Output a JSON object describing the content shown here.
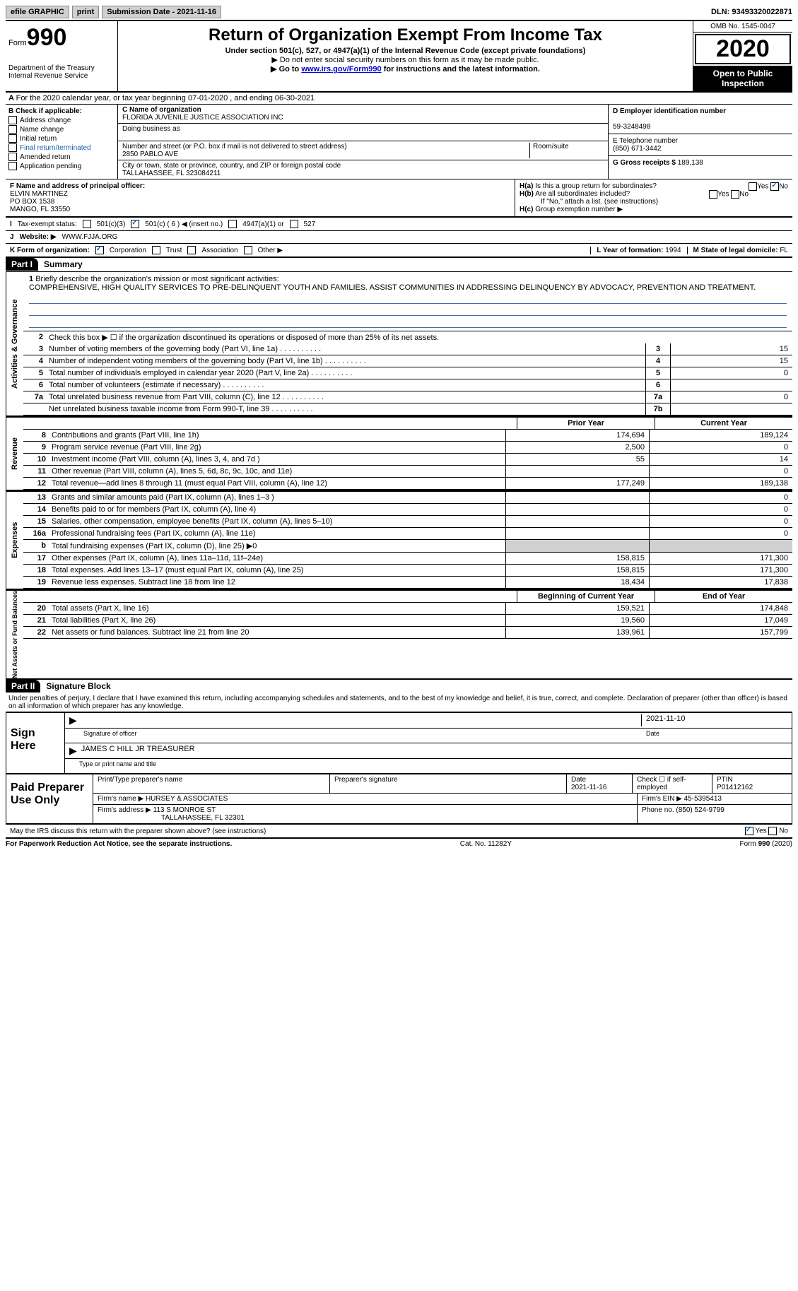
{
  "topbar": {
    "efile": "efile GRAPHIC",
    "print": "print",
    "sub_label": "Submission Date - ",
    "sub_date": "2021-11-16",
    "dln_label": "DLN: ",
    "dln": "93493320022871"
  },
  "header": {
    "form_prefix": "Form",
    "form_num": "990",
    "dept1": "Department of the Treasury",
    "dept2": "Internal Revenue Service",
    "title": "Return of Organization Exempt From Income Tax",
    "subtitle": "Under section 501(c), 527, or 4947(a)(1) of the Internal Revenue Code (except private foundations)",
    "note1": "▶ Do not enter social security numbers on this form as it may be made public.",
    "note2_pre": "▶ Go to ",
    "note2_link": "www.irs.gov/Form990",
    "note2_post": " for instructions and the latest information.",
    "omb": "OMB No. 1545-0047",
    "year": "2020",
    "public1": "Open to Public",
    "public2": "Inspection"
  },
  "line_a": "For the 2020 calendar year, or tax year beginning 07-01-2020    , and ending 06-30-2021",
  "section_b": {
    "label": "B Check if applicable:",
    "items": [
      "Address change",
      "Name change",
      "Initial return",
      "Final return/terminated",
      "Amended return",
      "Application pending"
    ]
  },
  "section_c": {
    "name_lbl": "C Name of organization",
    "name": "FLORIDA JUVENILE JUSTICE ASSOCIATION INC",
    "dba_lbl": "Doing business as",
    "addr_lbl": "Number and street (or P.O. box if mail is not delivered to street address)",
    "room_lbl": "Room/suite",
    "addr": "2850 PABLO AVE",
    "city_lbl": "City or town, state or province, country, and ZIP or foreign postal code",
    "city": "TALLAHASSEE, FL  323084211"
  },
  "section_d": {
    "ein_lbl": "D Employer identification number",
    "ein": "59-3248498",
    "phone_lbl": "E Telephone number",
    "phone": "(850) 671-3442",
    "gross_lbl": "G Gross receipts $ ",
    "gross": "189,138"
  },
  "section_f": {
    "lbl": "F Name and address of principal officer:",
    "name": "ELVIN MARTINEZ",
    "addr1": "PO BOX 1538",
    "addr2": "MANGO, FL  33550"
  },
  "section_h": {
    "ha": "Is this a group return for subordinates?",
    "hb": "Are all subordinates included?",
    "hb_note": "If \"No,\" attach a list. (see instructions)",
    "hc": "Group exemption number ▶",
    "yes": "Yes",
    "no": "No"
  },
  "row_i": {
    "lbl": "Tax-exempt status:",
    "opts": [
      "501(c)(3)",
      "501(c) ( 6 ) ◀ (insert no.)",
      "4947(a)(1) or",
      "527"
    ]
  },
  "row_j": {
    "lbl": "Website: ▶",
    "val": "WWW.FJJA.ORG"
  },
  "row_k": {
    "lbl": "K Form of organization:",
    "opts": [
      "Corporation",
      "Trust",
      "Association",
      "Other ▶"
    ],
    "l_lbl": "L Year of formation: ",
    "l_val": "1994",
    "m_lbl": "M State of legal domicile: ",
    "m_val": "FL"
  },
  "part1": {
    "hdr": "Part I",
    "title": "Summary",
    "q1": "Briefly describe the organization's mission or most significant activities:",
    "mission": "COMPREHENSIVE, HIGH QUALITY SERVICES TO PRE-DELINQUENT YOUTH AND FAMILIES. ASSIST COMMUNITIES IN ADDRESSING DELINQUENCY BY ADVOCACY, PREVENTION AND TREATMENT.",
    "q2": "Check this box ▶ ☐  if the organization discontinued its operations or disposed of more than 25% of its net assets.",
    "vert1": "Activities & Governance",
    "vert2": "Revenue",
    "vert3": "Expenses",
    "vert4": "Net Assets or Fund Balances"
  },
  "gov_rows": [
    {
      "n": "3",
      "txt": "Number of voting members of the governing body (Part VI, line 1a)",
      "cell": "3",
      "val": "15"
    },
    {
      "n": "4",
      "txt": "Number of independent voting members of the governing body (Part VI, line 1b)",
      "cell": "4",
      "val": "15"
    },
    {
      "n": "5",
      "txt": "Total number of individuals employed in calendar year 2020 (Part V, line 2a)",
      "cell": "5",
      "val": "0"
    },
    {
      "n": "6",
      "txt": "Total number of volunteers (estimate if necessary)",
      "cell": "6",
      "val": ""
    },
    {
      "n": "7a",
      "txt": "Total unrelated business revenue from Part VIII, column (C), line 12",
      "cell": "7a",
      "val": "0"
    },
    {
      "n": "",
      "txt": "Net unrelated business taxable income from Form 990-T, line 39",
      "cell": "7b",
      "val": ""
    }
  ],
  "fin_hdr": {
    "py": "Prior Year",
    "cy": "Current Year"
  },
  "revenue_rows": [
    {
      "n": "8",
      "txt": "Contributions and grants (Part VIII, line 1h)",
      "py": "174,694",
      "cy": "189,124"
    },
    {
      "n": "9",
      "txt": "Program service revenue (Part VIII, line 2g)",
      "py": "2,500",
      "cy": "0"
    },
    {
      "n": "10",
      "txt": "Investment income (Part VIII, column (A), lines 3, 4, and 7d )",
      "py": "55",
      "cy": "14"
    },
    {
      "n": "11",
      "txt": "Other revenue (Part VIII, column (A), lines 5, 6d, 8c, 9c, 10c, and 11e)",
      "py": "",
      "cy": "0"
    },
    {
      "n": "12",
      "txt": "Total revenue—add lines 8 through 11 (must equal Part VIII, column (A), line 12)",
      "py": "177,249",
      "cy": "189,138"
    }
  ],
  "expense_rows": [
    {
      "n": "13",
      "txt": "Grants and similar amounts paid (Part IX, column (A), lines 1–3 )",
      "py": "",
      "cy": "0"
    },
    {
      "n": "14",
      "txt": "Benefits paid to or for members (Part IX, column (A), line 4)",
      "py": "",
      "cy": "0"
    },
    {
      "n": "15",
      "txt": "Salaries, other compensation, employee benefits (Part IX, column (A), lines 5–10)",
      "py": "",
      "cy": "0"
    },
    {
      "n": "16a",
      "txt": "Professional fundraising fees (Part IX, column (A), line 11e)",
      "py": "",
      "cy": "0"
    },
    {
      "n": "b",
      "txt": "Total fundraising expenses (Part IX, column (D), line 25) ▶0",
      "py": "shade",
      "cy": "shade"
    },
    {
      "n": "17",
      "txt": "Other expenses (Part IX, column (A), lines 11a–11d, 11f–24e)",
      "py": "158,815",
      "cy": "171,300"
    },
    {
      "n": "18",
      "txt": "Total expenses. Add lines 13–17 (must equal Part IX, column (A), line 25)",
      "py": "158,815",
      "cy": "171,300"
    },
    {
      "n": "19",
      "txt": "Revenue less expenses. Subtract line 18 from line 12",
      "py": "18,434",
      "cy": "17,838"
    }
  ],
  "na_hdr": {
    "py": "Beginning of Current Year",
    "cy": "End of Year"
  },
  "na_rows": [
    {
      "n": "20",
      "txt": "Total assets (Part X, line 16)",
      "py": "159,521",
      "cy": "174,848"
    },
    {
      "n": "21",
      "txt": "Total liabilities (Part X, line 26)",
      "py": "19,560",
      "cy": "17,049"
    },
    {
      "n": "22",
      "txt": "Net assets or fund balances. Subtract line 21 from line 20",
      "py": "139,961",
      "cy": "157,799"
    }
  ],
  "part2": {
    "hdr": "Part II",
    "title": "Signature Block",
    "penalty": "Under penalties of perjury, I declare that I have examined this return, including accompanying schedules and statements, and to the best of my knowledge and belief, it is true, correct, and complete. Declaration of preparer (other than officer) is based on all information of which preparer has any knowledge."
  },
  "sign": {
    "lbl": "Sign Here",
    "sig_lbl": "Signature of officer",
    "date_lbl": "Date",
    "date": "2021-11-10",
    "name": "JAMES C HILL JR  TREASURER",
    "name_lbl": "Type or print name and title"
  },
  "prep": {
    "lbl": "Paid Preparer Use Only",
    "c1": "Print/Type preparer's name",
    "c2": "Preparer's signature",
    "c3_lbl": "Date",
    "c3": "2021-11-16",
    "c4": "Check ☐ if self-employed",
    "c5_lbl": "PTIN",
    "c5": "P01412162",
    "firm_lbl": "Firm's name    ▶ ",
    "firm": "HURSEY & ASSOCIATES",
    "ein_lbl": "Firm's EIN ▶ ",
    "ein": "45-5395413",
    "addr_lbl": "Firm's address ▶ ",
    "addr1": "113 S MONROE ST",
    "addr2": "TALLAHASSEE, FL  32301",
    "ph_lbl": "Phone no. ",
    "ph": "(850) 524-9799"
  },
  "discuss": {
    "txt": "May the IRS discuss this return with the preparer shown above? (see instructions)",
    "yes": "Yes",
    "no": "No"
  },
  "footer": {
    "left": "For Paperwork Reduction Act Notice, see the separate instructions.",
    "mid": "Cat. No. 11282Y",
    "right": "Form 990 (2020)"
  }
}
